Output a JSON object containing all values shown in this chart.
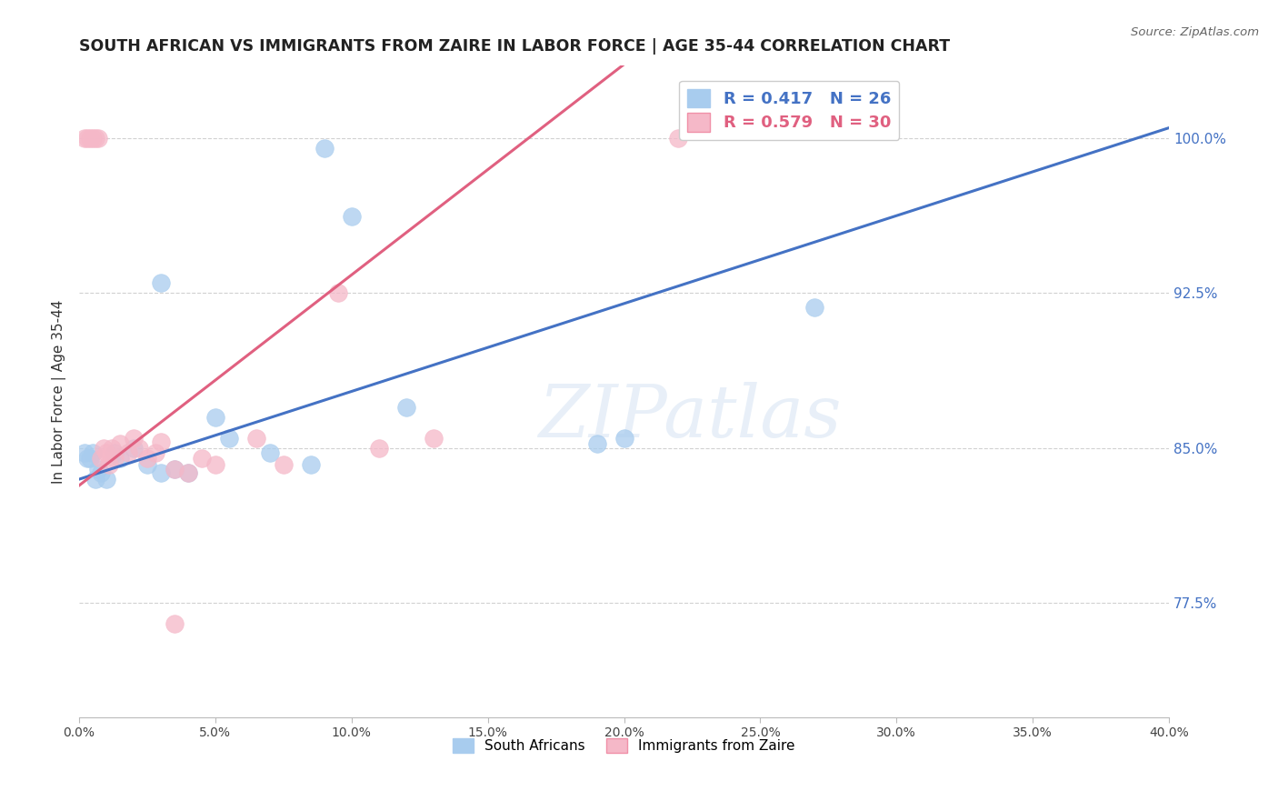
{
  "title": "SOUTH AFRICAN VS IMMIGRANTS FROM ZAIRE IN LABOR FORCE | AGE 35-44 CORRELATION CHART",
  "source": "Source: ZipAtlas.com",
  "ylabel": "In Labor Force | Age 35-44",
  "xlim": [
    0.0,
    40.0
  ],
  "ylim": [
    72.0,
    103.5
  ],
  "yticks": [
    77.5,
    85.0,
    92.5,
    100.0
  ],
  "xticks": [
    0.0,
    5.0,
    10.0,
    15.0,
    20.0,
    25.0,
    30.0,
    35.0,
    40.0
  ],
  "blue_R": 0.417,
  "blue_N": 26,
  "pink_R": 0.579,
  "pink_N": 30,
  "blue_color": "#a8ccee",
  "pink_color": "#f5b8c8",
  "blue_line_color": "#4472c4",
  "pink_line_color": "#e06080",
  "blue_line_x0": 0.0,
  "blue_line_y0": 83.5,
  "blue_line_x1": 40.0,
  "blue_line_y1": 100.5,
  "pink_line_x0": 0.0,
  "pink_line_y0": 83.2,
  "pink_line_x1": 16.0,
  "pink_line_y1": 99.5,
  "blue_points_x": [
    0.2,
    0.3,
    0.4,
    0.5,
    0.6,
    0.7,
    0.8,
    1.0,
    1.3,
    1.5,
    2.0,
    2.5,
    3.0,
    3.5,
    4.0,
    5.5,
    7.0,
    8.5,
    10.0,
    12.0,
    19.0,
    20.0,
    27.0,
    3.0,
    5.0,
    9.0
  ],
  "blue_points_y": [
    84.8,
    84.5,
    84.5,
    84.8,
    83.5,
    84.0,
    83.8,
    83.5,
    84.8,
    84.5,
    85.0,
    84.2,
    83.8,
    84.0,
    83.8,
    85.5,
    84.8,
    84.2,
    96.2,
    87.0,
    85.2,
    85.5,
    91.8,
    93.0,
    86.5,
    99.5
  ],
  "pink_points_x": [
    0.2,
    0.3,
    0.4,
    0.5,
    0.6,
    0.7,
    0.8,
    0.9,
    1.0,
    1.1,
    1.2,
    1.3,
    1.5,
    1.8,
    2.0,
    2.2,
    2.5,
    2.8,
    3.0,
    3.5,
    4.0,
    4.5,
    5.0,
    6.5,
    7.5,
    9.5,
    11.0,
    13.0,
    22.0,
    3.5
  ],
  "pink_points_y": [
    100.0,
    100.0,
    100.0,
    100.0,
    100.0,
    100.0,
    84.5,
    85.0,
    84.8,
    84.2,
    85.0,
    84.5,
    85.2,
    84.8,
    85.5,
    85.0,
    84.5,
    84.8,
    85.3,
    84.0,
    83.8,
    84.5,
    84.2,
    85.5,
    84.2,
    92.5,
    85.0,
    85.5,
    100.0,
    76.5
  ],
  "watermark_text": "ZIPatlas",
  "legend_label_blue": "South Africans",
  "legend_label_pink": "Immigrants from Zaire"
}
